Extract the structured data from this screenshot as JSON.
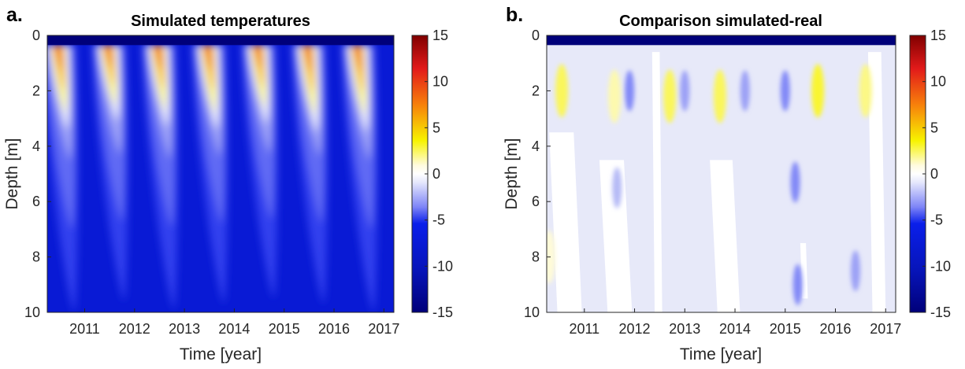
{
  "chart_data": [
    {
      "type": "heatmap",
      "panel_label": "a.",
      "title": "Simulated temperatures",
      "xlabel": "Time [year]",
      "ylabel": "Depth [m]",
      "x_ticks": [
        "2011",
        "2012",
        "2013",
        "2014",
        "2015",
        "2016",
        "2017"
      ],
      "x_tick_values": [
        2011,
        2012,
        2013,
        2014,
        2015,
        2016,
        2017
      ],
      "xlim": [
        2010.25,
        2017.2
      ],
      "y_ticks": [
        "0",
        "2",
        "4",
        "6",
        "8",
        "10"
      ],
      "y_tick_values": [
        0,
        2,
        4,
        6,
        8,
        10
      ],
      "ylim": [
        0,
        10
      ],
      "y_reversed": true,
      "colorbar": {
        "ticks": [
          "15",
          "10",
          "5",
          "0",
          "-5",
          "-10",
          "-15"
        ],
        "tick_values": [
          15,
          10,
          5,
          0,
          -5,
          -10,
          -15
        ],
        "range": [
          -15,
          15
        ],
        "colormap": "blue-white-yellow-red"
      },
      "background_value": -8,
      "surface_layer": {
        "depth_range": [
          0,
          0.35
        ],
        "value": -15
      },
      "summer_plumes": [
        {
          "peak_year": 2010.45,
          "max_value": 12,
          "warm_depth": 3.4,
          "cold_tail_depth": 10
        },
        {
          "peak_year": 2011.45,
          "max_value": 11,
          "warm_depth": 3.1,
          "cold_tail_depth": 9.6
        },
        {
          "peak_year": 2012.45,
          "max_value": 12,
          "warm_depth": 3.3,
          "cold_tail_depth": 9.9
        },
        {
          "peak_year": 2013.45,
          "max_value": 11,
          "warm_depth": 3.4,
          "cold_tail_depth": 9.7
        },
        {
          "peak_year": 2014.45,
          "max_value": 10,
          "warm_depth": 3.2,
          "cold_tail_depth": 9.5
        },
        {
          "peak_year": 2015.45,
          "max_value": 12,
          "warm_depth": 3.5,
          "cold_tail_depth": 9.7
        },
        {
          "peak_year": 2016.45,
          "max_value": 12,
          "warm_depth": 3.5,
          "cold_tail_depth": 10
        }
      ]
    },
    {
      "type": "heatmap",
      "panel_label": "b.",
      "title": "Comparison simulated-real",
      "xlabel": "Time [year]",
      "ylabel": "Depth [m]",
      "x_ticks": [
        "2011",
        "2012",
        "2013",
        "2014",
        "2015",
        "2016",
        "2017"
      ],
      "x_tick_values": [
        2011,
        2012,
        2013,
        2014,
        2015,
        2016,
        2017
      ],
      "xlim": [
        2010.25,
        2017.2
      ],
      "y_ticks": [
        "0",
        "2",
        "4",
        "6",
        "8",
        "10"
      ],
      "y_tick_values": [
        0,
        2,
        4,
        6,
        8,
        10
      ],
      "ylim": [
        0,
        10
      ],
      "y_reversed": true,
      "colorbar": {
        "ticks": [
          "15",
          "10",
          "5",
          "0",
          "-5",
          "-10",
          "-15"
        ],
        "tick_values": [
          15,
          10,
          5,
          0,
          -5,
          -10,
          -15
        ],
        "range": [
          -15,
          15
        ],
        "colormap": "blue-white-yellow-red"
      },
      "background_value": -0.5,
      "surface_layer": {
        "depth_range": [
          0,
          0.35
        ],
        "value": -15
      },
      "white_bands": [
        {
          "year_range": [
            2010.3,
            2010.95
          ],
          "depth_range": [
            3.5,
            10
          ]
        },
        {
          "year_range": [
            2011.3,
            2011.95
          ],
          "depth_range": [
            4.5,
            10
          ]
        },
        {
          "year_range": [
            2012.35,
            2012.55
          ],
          "depth_range": [
            0.6,
            10
          ]
        },
        {
          "year_range": [
            2013.5,
            2014.1
          ],
          "depth_range": [
            4.5,
            10
          ]
        },
        {
          "year_range": [
            2015.3,
            2015.45
          ],
          "depth_range": [
            7.5,
            9.5
          ]
        },
        {
          "year_range": [
            2016.65,
            2017.0
          ],
          "depth_range": [
            0.6,
            10
          ]
        }
      ],
      "warm_spots": [
        {
          "year": 2010.55,
          "depth": 2.0,
          "value": 2.5
        },
        {
          "year": 2011.6,
          "depth": 2.2,
          "value": 1.5
        },
        {
          "year": 2012.7,
          "depth": 2.2,
          "value": 2.5
        },
        {
          "year": 2013.7,
          "depth": 2.2,
          "value": 2.5
        },
        {
          "year": 2015.65,
          "depth": 2.0,
          "value": 3.0
        },
        {
          "year": 2016.6,
          "depth": 2.0,
          "value": 2.0
        },
        {
          "year": 2010.3,
          "depth": 8.0,
          "value": 1.0
        }
      ],
      "cool_spots": [
        {
          "year": 2011.9,
          "depth": 2.0,
          "value": -2.5
        },
        {
          "year": 2013.0,
          "depth": 2.0,
          "value": -2.0
        },
        {
          "year": 2014.2,
          "depth": 2.0,
          "value": -2.0
        },
        {
          "year": 2015.0,
          "depth": 2.0,
          "value": -2.5
        },
        {
          "year": 2015.2,
          "depth": 5.3,
          "value": -2.5
        },
        {
          "year": 2015.25,
          "depth": 9.0,
          "value": -2.5
        },
        {
          "year": 2016.4,
          "depth": 8.5,
          "value": -2.0
        },
        {
          "year": 2011.65,
          "depth": 5.5,
          "value": -1.5
        }
      ]
    }
  ]
}
